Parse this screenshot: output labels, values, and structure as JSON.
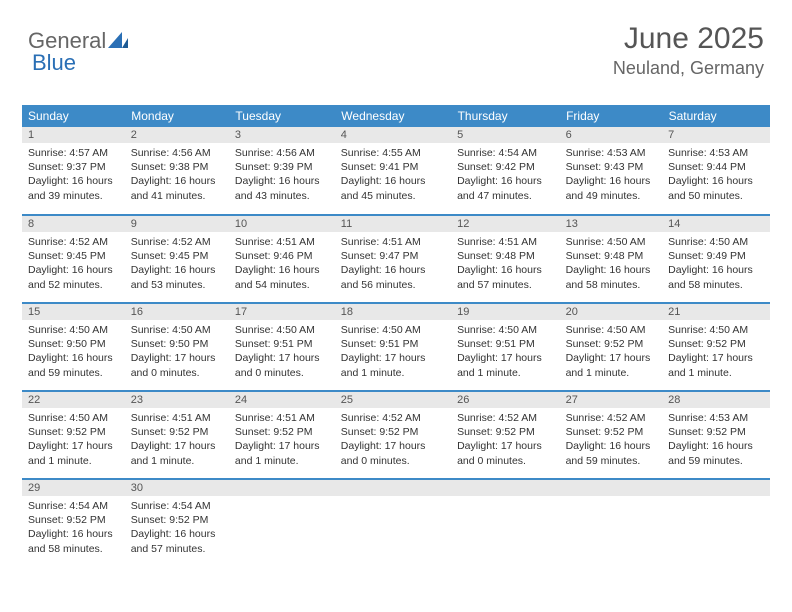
{
  "logo": {
    "text1": "General",
    "text2": "Blue"
  },
  "header": {
    "month": "June 2025",
    "location": "Neuland, Germany"
  },
  "table": {
    "header_bg": "#3d8ac7",
    "header_fg": "#ffffff",
    "daynum_bg": "#e8e8e8",
    "border_color": "#3d8ac7",
    "columns": [
      "Sunday",
      "Monday",
      "Tuesday",
      "Wednesday",
      "Thursday",
      "Friday",
      "Saturday"
    ],
    "weeks": [
      [
        {
          "n": "1",
          "sr": "4:57 AM",
          "ss": "9:37 PM",
          "dl": "16 hours and 39 minutes."
        },
        {
          "n": "2",
          "sr": "4:56 AM",
          "ss": "9:38 PM",
          "dl": "16 hours and 41 minutes."
        },
        {
          "n": "3",
          "sr": "4:56 AM",
          "ss": "9:39 PM",
          "dl": "16 hours and 43 minutes."
        },
        {
          "n": "4",
          "sr": "4:55 AM",
          "ss": "9:41 PM",
          "dl": "16 hours and 45 minutes."
        },
        {
          "n": "5",
          "sr": "4:54 AM",
          "ss": "9:42 PM",
          "dl": "16 hours and 47 minutes."
        },
        {
          "n": "6",
          "sr": "4:53 AM",
          "ss": "9:43 PM",
          "dl": "16 hours and 49 minutes."
        },
        {
          "n": "7",
          "sr": "4:53 AM",
          "ss": "9:44 PM",
          "dl": "16 hours and 50 minutes."
        }
      ],
      [
        {
          "n": "8",
          "sr": "4:52 AM",
          "ss": "9:45 PM",
          "dl": "16 hours and 52 minutes."
        },
        {
          "n": "9",
          "sr": "4:52 AM",
          "ss": "9:45 PM",
          "dl": "16 hours and 53 minutes."
        },
        {
          "n": "10",
          "sr": "4:51 AM",
          "ss": "9:46 PM",
          "dl": "16 hours and 54 minutes."
        },
        {
          "n": "11",
          "sr": "4:51 AM",
          "ss": "9:47 PM",
          "dl": "16 hours and 56 minutes."
        },
        {
          "n": "12",
          "sr": "4:51 AM",
          "ss": "9:48 PM",
          "dl": "16 hours and 57 minutes."
        },
        {
          "n": "13",
          "sr": "4:50 AM",
          "ss": "9:48 PM",
          "dl": "16 hours and 58 minutes."
        },
        {
          "n": "14",
          "sr": "4:50 AM",
          "ss": "9:49 PM",
          "dl": "16 hours and 58 minutes."
        }
      ],
      [
        {
          "n": "15",
          "sr": "4:50 AM",
          "ss": "9:50 PM",
          "dl": "16 hours and 59 minutes."
        },
        {
          "n": "16",
          "sr": "4:50 AM",
          "ss": "9:50 PM",
          "dl": "17 hours and 0 minutes."
        },
        {
          "n": "17",
          "sr": "4:50 AM",
          "ss": "9:51 PM",
          "dl": "17 hours and 0 minutes."
        },
        {
          "n": "18",
          "sr": "4:50 AM",
          "ss": "9:51 PM",
          "dl": "17 hours and 1 minute."
        },
        {
          "n": "19",
          "sr": "4:50 AM",
          "ss": "9:51 PM",
          "dl": "17 hours and 1 minute."
        },
        {
          "n": "20",
          "sr": "4:50 AM",
          "ss": "9:52 PM",
          "dl": "17 hours and 1 minute."
        },
        {
          "n": "21",
          "sr": "4:50 AM",
          "ss": "9:52 PM",
          "dl": "17 hours and 1 minute."
        }
      ],
      [
        {
          "n": "22",
          "sr": "4:50 AM",
          "ss": "9:52 PM",
          "dl": "17 hours and 1 minute."
        },
        {
          "n": "23",
          "sr": "4:51 AM",
          "ss": "9:52 PM",
          "dl": "17 hours and 1 minute."
        },
        {
          "n": "24",
          "sr": "4:51 AM",
          "ss": "9:52 PM",
          "dl": "17 hours and 1 minute."
        },
        {
          "n": "25",
          "sr": "4:52 AM",
          "ss": "9:52 PM",
          "dl": "17 hours and 0 minutes."
        },
        {
          "n": "26",
          "sr": "4:52 AM",
          "ss": "9:52 PM",
          "dl": "17 hours and 0 minutes."
        },
        {
          "n": "27",
          "sr": "4:52 AM",
          "ss": "9:52 PM",
          "dl": "16 hours and 59 minutes."
        },
        {
          "n": "28",
          "sr": "4:53 AM",
          "ss": "9:52 PM",
          "dl": "16 hours and 59 minutes."
        }
      ],
      [
        {
          "n": "29",
          "sr": "4:54 AM",
          "ss": "9:52 PM",
          "dl": "16 hours and 58 minutes."
        },
        {
          "n": "30",
          "sr": "4:54 AM",
          "ss": "9:52 PM",
          "dl": "16 hours and 57 minutes."
        },
        null,
        null,
        null,
        null,
        null
      ]
    ]
  },
  "labels": {
    "sunrise": "Sunrise:",
    "sunset": "Sunset:",
    "daylight": "Daylight:"
  }
}
